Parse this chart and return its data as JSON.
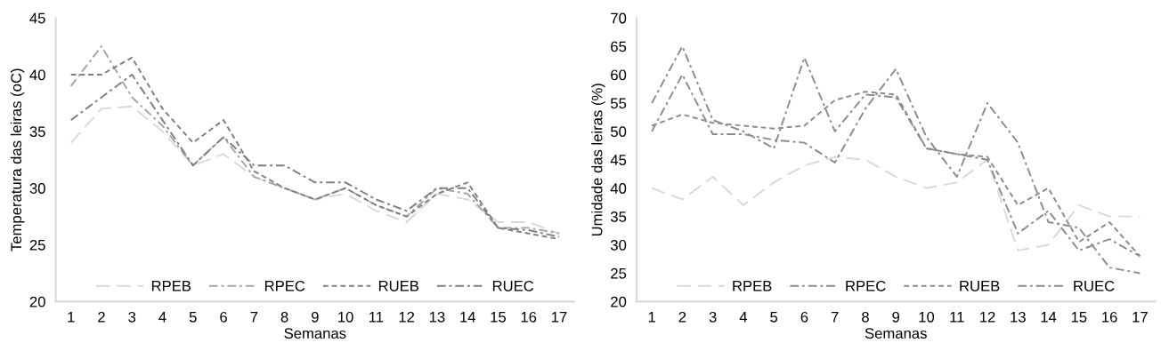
{
  "chart_data": [
    {
      "type": "line",
      "xlabel": "Semanas",
      "ylabel": "Temperatura das leiras (oC)",
      "categories": [
        "1",
        "2",
        "3",
        "4",
        "5",
        "6",
        "7",
        "8",
        "9",
        "10",
        "11",
        "12",
        "13",
        "14",
        "15",
        "16",
        "17"
      ],
      "ylim": [
        20,
        45
      ],
      "yticks": [
        20,
        25,
        30,
        35,
        40,
        45
      ],
      "grid": false,
      "legend": "bottom",
      "marker": "none",
      "series": [
        {
          "name": "RPEB",
          "color": "#d9d9d9",
          "line_style": "dashed",
          "values": [
            34,
            37,
            37.2,
            35,
            32,
            33,
            31,
            30,
            29,
            29.5,
            28,
            27,
            29.5,
            29,
            27,
            27,
            26
          ]
        },
        {
          "name": "RPEC",
          "color": "#a6a6a6",
          "line_style": "dashdot",
          "values": [
            39,
            42.5,
            38,
            35.5,
            32,
            34.5,
            31,
            30,
            29,
            30,
            28.5,
            27.5,
            30,
            29.5,
            26.5,
            26.5,
            26
          ]
        },
        {
          "name": "RUEB",
          "color": "#7f7f7f",
          "line_style": "dotted",
          "values": [
            40,
            40,
            41.5,
            37,
            34,
            36,
            31.5,
            30,
            29,
            30,
            28.5,
            27.5,
            29.5,
            30.5,
            26.5,
            26,
            25.5
          ]
        },
        {
          "name": "RUEC",
          "color": "#7f7f7f",
          "line_style": "dashdot",
          "values": [
            36,
            38,
            40,
            36,
            32,
            34.5,
            32,
            32,
            30.5,
            30.5,
            29,
            28,
            30,
            30,
            26.5,
            26.3,
            25.7
          ]
        }
      ]
    },
    {
      "type": "line",
      "xlabel": "Semanas",
      "ylabel": "Umidade das leiras (%)",
      "categories": [
        "1",
        "2",
        "3",
        "4",
        "5",
        "6",
        "7",
        "8",
        "9",
        "10",
        "11",
        "12",
        "13",
        "14",
        "15",
        "16",
        "17"
      ],
      "ylim": [
        20,
        70
      ],
      "yticks": [
        20,
        25,
        30,
        35,
        40,
        45,
        50,
        55,
        60,
        65,
        70
      ],
      "grid": false,
      "legend": "bottom",
      "marker": "none",
      "series": [
        {
          "name": "RPEB",
          "color": "#d9d9d9",
          "line_style": "dashed",
          "values": [
            40,
            38,
            42,
            37,
            41,
            44,
            45.5,
            45,
            42,
            40,
            41,
            45,
            29,
            30,
            37,
            35,
            35
          ]
        },
        {
          "name": "RPEC",
          "color": "#8c8c8c",
          "line_style": "dashdot",
          "values": [
            55,
            65,
            52,
            50,
            47,
            63,
            50,
            56.5,
            56,
            47,
            46,
            45,
            32,
            36,
            29,
            31,
            28
          ]
        },
        {
          "name": "RUEB",
          "color": "#8c8c8c",
          "line_style": "dotted",
          "values": [
            51,
            53,
            51.5,
            51,
            50.5,
            51,
            55.5,
            57,
            56.5,
            47,
            46,
            45.5,
            37,
            40,
            30.5,
            34,
            28
          ]
        },
        {
          "name": "RUEC",
          "color": "#8c8c8c",
          "line_style": "dashdot",
          "values": [
            50,
            60,
            49.5,
            49.5,
            48.5,
            48,
            44.5,
            54,
            61,
            49,
            42,
            55,
            48,
            34,
            33,
            26,
            25
          ]
        }
      ]
    }
  ]
}
